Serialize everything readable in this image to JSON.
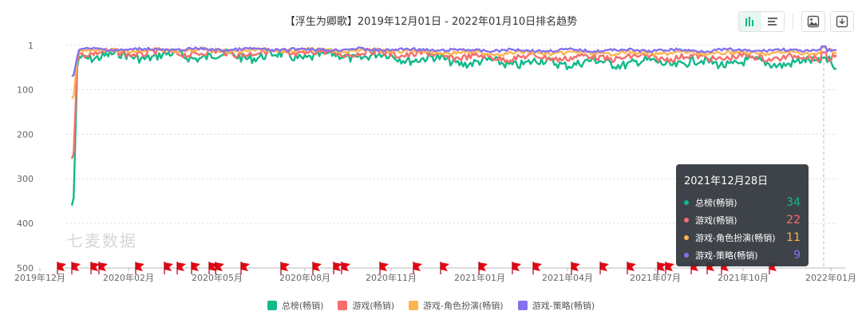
{
  "title": "【浮生为卿歌】2019年12月01日 - 2022年01月10日排名趋势",
  "watermark": "七麦数据",
  "toolbar": {
    "icons": [
      "bar-chart-icon",
      "list-icon",
      "image-icon",
      "download-icon"
    ]
  },
  "tooltip": {
    "date": "2021年12月28日",
    "rows": [
      {
        "name": "总榜(畅销)",
        "value": "34",
        "color": "#11b98a"
      },
      {
        "name": "游戏(畅销)",
        "value": "22",
        "color": "#f66e6b"
      },
      {
        "name": "游戏-角色扮演(畅销)",
        "value": "11",
        "color": "#fdb54f"
      },
      {
        "name": "游戏-策略(畅销)",
        "value": "9",
        "color": "#8571ef"
      }
    ]
  },
  "chart_data": {
    "type": "line",
    "title": "【浮生为卿歌】2019年12月01日 - 2022年01月10日排名趋势",
    "y_axis": {
      "ticks": [
        "1",
        "100",
        "200",
        "300",
        "400",
        "500"
      ],
      "range": [
        1,
        500
      ],
      "inverted": true
    },
    "x_axis": {
      "ticks": [
        "2019年12月",
        "2020年02月",
        "2020年05月",
        "2020年08月",
        "2020年11月",
        "2021年01月",
        "2021年04月",
        "2021年07月",
        "2021年10月",
        "2022年01月"
      ]
    },
    "grid": true,
    "legend_position": "bottom",
    "series": [
      {
        "name": "总榜(畅销)",
        "color": "#11b98a",
        "start_rank": 360,
        "settled_rank_2020": 25,
        "settled_rank_2021": 40,
        "last_rank": 34
      },
      {
        "name": "游戏(畅销)",
        "color": "#f66e6b",
        "start_rank": 255,
        "settled_rank_2020": 18,
        "settled_rank_2021": 28,
        "last_rank": 22
      },
      {
        "name": "游戏-角色扮演(畅销)",
        "color": "#fdb54f",
        "start_rank": 120,
        "settled_rank_2020": 12,
        "settled_rank_2021": 18,
        "last_rank": 11
      },
      {
        "name": "游戏-策略(畅销)",
        "color": "#8571ef",
        "start_rank": 70,
        "settled_rank_2020": 10,
        "settled_rank_2021": 12,
        "last_rank": 9
      }
    ],
    "event_flags": 30
  }
}
